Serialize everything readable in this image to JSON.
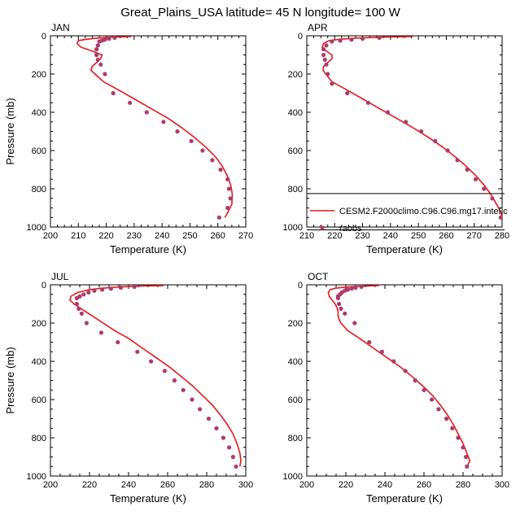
{
  "figure": {
    "title": "Great_Plains_USA  latitude= 45 N longitude= 100 W"
  },
  "colors": {
    "model_line": "#e8171c",
    "obs_marker": "#b03a6a",
    "axis": "#000000"
  },
  "chart_data": [
    {
      "type": "line",
      "panel_label": "JAN",
      "xlabel": "Temperature (K)",
      "ylabel": "Pressure (mb)",
      "xlim": [
        200,
        270
      ],
      "ylim": [
        1000,
        0
      ],
      "xticks": [
        200,
        210,
        220,
        230,
        240,
        250,
        260,
        270
      ],
      "yticks": [
        0,
        200,
        400,
        600,
        800,
        1000
      ],
      "series": [
        {
          "kind": "line",
          "x": [
            229,
            222,
            217,
            213,
            210,
            209.5,
            211,
            215,
            218.5,
            218,
            216.5,
            215,
            214.5,
            216,
            219,
            224,
            230,
            236,
            242,
            247,
            251.5,
            255.5,
            259,
            261.5,
            263.3,
            264.6,
            265.2,
            265,
            263.7,
            262.5
          ],
          "y": [
            4,
            7,
            12,
            18,
            25,
            40,
            60,
            80,
            100,
            120,
            140,
            160,
            180,
            200,
            240,
            280,
            330,
            380,
            430,
            480,
            530,
            580,
            630,
            680,
            730,
            780,
            830,
            880,
            920,
            950
          ]
        },
        {
          "kind": "scatter",
          "x": [
            223,
            221,
            219.5,
            218.5,
            217.5,
            217,
            216.5,
            216.5,
            217,
            218,
            219.5,
            222.5,
            228.5,
            234.5,
            240.5,
            245.5,
            250.5,
            254.5,
            258,
            261,
            263.5,
            264,
            264.5,
            263.5,
            260.5
          ],
          "y": [
            10,
            15,
            20,
            25,
            30,
            50,
            70,
            100,
            125,
            150,
            200,
            300,
            350,
            400,
            450,
            500,
            550,
            600,
            650,
            700,
            750,
            800,
            850,
            900,
            950
          ]
        }
      ]
    },
    {
      "type": "line",
      "panel_label": "APR",
      "xlabel": "Temperature (K)",
      "ylabel": "",
      "xlim": [
        210,
        280
      ],
      "ylim": [
        1000,
        0
      ],
      "xticks": [
        210,
        220,
        230,
        240,
        250,
        260,
        270,
        280
      ],
      "yticks": [
        0,
        200,
        400,
        600,
        800,
        1000
      ],
      "legend": {
        "placement": "bottom-right",
        "entries": [
          "CESM2.F2000climo.C96.C96.mg17.intel.c",
          "raobs"
        ]
      },
      "series": [
        {
          "kind": "line",
          "x": [
            248,
            238,
            228,
            222,
            218,
            216,
            215.5,
            217,
            219,
            219,
            217.5,
            216,
            215.8,
            216.8,
            219,
            224,
            230,
            236,
            242,
            248,
            253.5,
            258.5,
            263,
            267,
            270.5,
            273.5,
            276,
            278,
            279.5,
            280
          ],
          "y": [
            4,
            7,
            12,
            18,
            25,
            40,
            60,
            80,
            100,
            120,
            140,
            160,
            180,
            200,
            240,
            280,
            330,
            380,
            430,
            480,
            530,
            580,
            630,
            680,
            730,
            780,
            830,
            880,
            920,
            950
          ]
        },
        {
          "kind": "scatter",
          "x": [
            236,
            230,
            226,
            222,
            219,
            217,
            216,
            216,
            216.5,
            217,
            217.5,
            219,
            224.5,
            232,
            239,
            245.5,
            251,
            256,
            260.5,
            264,
            267.5,
            270.5,
            273.5,
            276.5,
            279.5
          ],
          "y": [
            10,
            15,
            20,
            25,
            30,
            50,
            70,
            100,
            125,
            150,
            200,
            250,
            300,
            350,
            400,
            450,
            500,
            550,
            600,
            650,
            700,
            750,
            800,
            850,
            950
          ]
        }
      ]
    },
    {
      "type": "line",
      "panel_label": "JUL",
      "xlabel": "Temperature (K)",
      "ylabel": "Pressure (mb)",
      "xlim": [
        200,
        300
      ],
      "ylim": [
        1000,
        0
      ],
      "xticks": [
        200,
        220,
        240,
        260,
        280,
        300
      ],
      "yticks": [
        0,
        200,
        400,
        600,
        800,
        1000
      ],
      "series": [
        {
          "kind": "line",
          "x": [
            258,
            245,
            234,
            226,
            220,
            214,
            210.5,
            210,
            212,
            215,
            218,
            221,
            224,
            227,
            233,
            240,
            247,
            254,
            261,
            267,
            273,
            278,
            283,
            287,
            290.5,
            293.5,
            295.5,
            297,
            297.5,
            297
          ],
          "y": [
            4,
            7,
            12,
            18,
            25,
            40,
            60,
            80,
            100,
            120,
            140,
            160,
            180,
            200,
            240,
            280,
            330,
            380,
            430,
            480,
            530,
            580,
            630,
            680,
            730,
            780,
            830,
            880,
            920,
            950
          ]
        },
        {
          "kind": "scatter",
          "x": [
            243,
            236,
            231,
            226.5,
            222.5,
            219.5,
            217,
            215,
            213.5,
            213.5,
            214.5,
            216,
            218.5,
            226,
            234.5,
            244.5,
            251.5,
            258.5,
            263.5,
            268,
            272.5,
            276.5,
            281,
            285,
            288.5,
            291.5,
            293.5,
            295
          ],
          "y": [
            10,
            15,
            20,
            25,
            30,
            40,
            50,
            60,
            70,
            100,
            125,
            150,
            200,
            250,
            300,
            350,
            400,
            450,
            500,
            550,
            600,
            650,
            700,
            750,
            800,
            850,
            900,
            950
          ]
        }
      ]
    },
    {
      "type": "line",
      "panel_label": "OCT",
      "xlabel": "Temperature (K)",
      "ylabel": "",
      "xlim": [
        200,
        300
      ],
      "ylim": [
        1000,
        0
      ],
      "xticks": [
        200,
        220,
        240,
        260,
        280,
        300
      ],
      "yticks": [
        0,
        200,
        400,
        600,
        800,
        1000
      ],
      "series": [
        {
          "kind": "line",
          "x": [
            237,
            228,
            220,
            214.5,
            212,
            211,
            211.5,
            213,
            214.5,
            215.5,
            216,
            216,
            216.5,
            217.5,
            221,
            227,
            234,
            241,
            248,
            254,
            259.5,
            264.5,
            268.5,
            272,
            275,
            277.5,
            280,
            282,
            283.5,
            282
          ],
          "y": [
            4,
            7,
            12,
            18,
            25,
            40,
            60,
            80,
            100,
            120,
            140,
            160,
            180,
            200,
            240,
            280,
            330,
            380,
            430,
            480,
            530,
            580,
            630,
            680,
            730,
            780,
            830,
            880,
            920,
            950
          ]
        },
        {
          "kind": "scatter",
          "x": [
            228,
            225,
            223,
            221,
            219.5,
            218,
            217,
            216,
            216,
            216.5,
            217.5,
            219.5,
            224.5,
            232,
            238.5,
            244.5,
            250.5,
            255.5,
            260,
            264,
            267.5,
            271.5,
            274.5,
            277.5,
            280,
            281.5,
            282
          ],
          "y": [
            10,
            15,
            20,
            25,
            30,
            40,
            50,
            60,
            70,
            100,
            125,
            150,
            200,
            300,
            350,
            400,
            450,
            500,
            550,
            600,
            650,
            700,
            750,
            800,
            850,
            900,
            950
          ]
        }
      ]
    }
  ]
}
